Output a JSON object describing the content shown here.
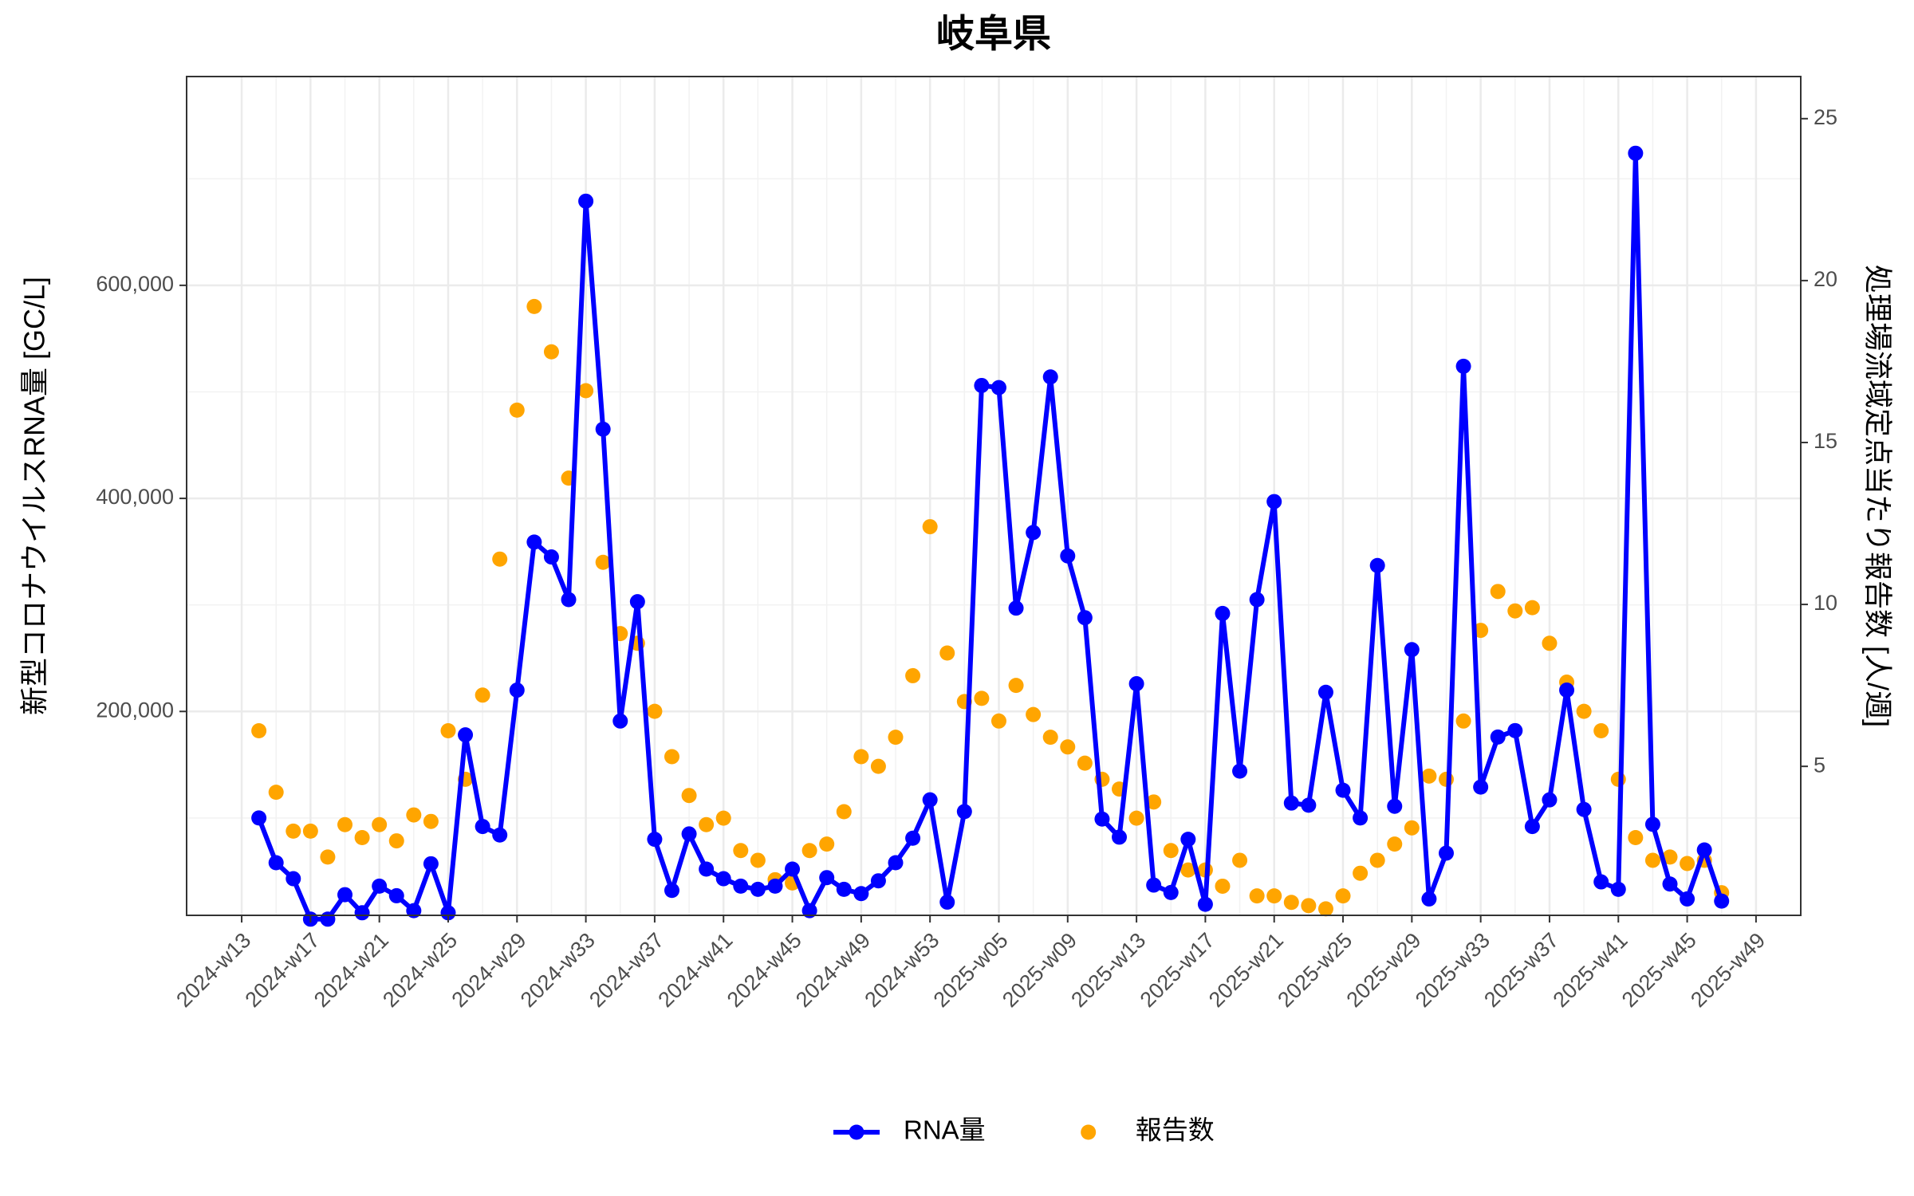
{
  "chart_data": {
    "type": "line",
    "title": "岐阜県",
    "xlabel_rotation": 45,
    "ylabel": "新型コロナウイルスRNA量 [GC/L]",
    "y2label": "処理場流域定点当たり報告数 [人/週]",
    "x": [
      1,
      2,
      3,
      4,
      5,
      6,
      7,
      8,
      9,
      10,
      11,
      12,
      13,
      14,
      15,
      16,
      17,
      18,
      19,
      20,
      21,
      22,
      23,
      24,
      25,
      26,
      27,
      28,
      29,
      30,
      31,
      32,
      33,
      34,
      35,
      36,
      37,
      38,
      39,
      40,
      41,
      42,
      43,
      44,
      45,
      46,
      47,
      48,
      49,
      50,
      51,
      52,
      53,
      54,
      55,
      56,
      57,
      58,
      59,
      60,
      61,
      62,
      63,
      64,
      65,
      66,
      67,
      68,
      69,
      70,
      71,
      72,
      73,
      74,
      75,
      76,
      77,
      78,
      79,
      80,
      81,
      82,
      83,
      84,
      85,
      86
    ],
    "xlim": [
      -3.2,
      90.6
    ],
    "xticks": [
      {
        "value": 0,
        "label": "2024-w13"
      },
      {
        "value": 4,
        "label": "2024-w17"
      },
      {
        "value": 8,
        "label": "2024-w21"
      },
      {
        "value": 12,
        "label": "2024-w25"
      },
      {
        "value": 16,
        "label": "2024-w29"
      },
      {
        "value": 20,
        "label": "2024-w33"
      },
      {
        "value": 24,
        "label": "2024-w37"
      },
      {
        "value": 28,
        "label": "2024-w41"
      },
      {
        "value": 32,
        "label": "2024-w45"
      },
      {
        "value": 36,
        "label": "2024-w49"
      },
      {
        "value": 40,
        "label": "2024-w53"
      },
      {
        "value": 44,
        "label": "2025-w05"
      },
      {
        "value": 48,
        "label": "2025-w09"
      },
      {
        "value": 52,
        "label": "2025-w13"
      },
      {
        "value": 56,
        "label": "2025-w17"
      },
      {
        "value": 60,
        "label": "2025-w21"
      },
      {
        "value": 64,
        "label": "2025-w25"
      },
      {
        "value": 68,
        "label": "2025-w29"
      },
      {
        "value": 72,
        "label": "2025-w33"
      },
      {
        "value": 76,
        "label": "2025-w37"
      },
      {
        "value": 80,
        "label": "2025-w41"
      },
      {
        "value": 84,
        "label": "2025-w45"
      },
      {
        "value": 88,
        "label": "2025-w49"
      }
    ],
    "ylim": [
      8600,
      796000
    ],
    "yticks": [
      {
        "value": 200000,
        "label": "200,000"
      },
      {
        "value": 400000,
        "label": "400,000"
      },
      {
        "value": 600000,
        "label": "600,000"
      }
    ],
    "y2lim": [
      0.4,
      26.3
    ],
    "y2ticks": [
      5,
      10,
      15,
      20,
      25
    ],
    "grid": true,
    "legend": "bottom",
    "series": [
      {
        "name": "RNA量",
        "color": "#0000ff",
        "mode": "lines+markers",
        "values": [
          100000,
          58000,
          43000,
          5000,
          5000,
          28000,
          11000,
          36000,
          27000,
          13000,
          57000,
          11000,
          178000,
          92000,
          84000,
          220000,
          359000,
          345000,
          305000,
          679000,
          465000,
          191000,
          303000,
          80000,
          32000,
          85000,
          52000,
          43000,
          36000,
          33000,
          36000,
          52000,
          13000,
          44000,
          33000,
          29000,
          41000,
          58000,
          81000,
          117000,
          21000,
          106000,
          506000,
          504000,
          297000,
          368000,
          514000,
          346000,
          288000,
          99000,
          82000,
          226000,
          37000,
          30000,
          80000,
          19000,
          292000,
          144000,
          305000,
          397000,
          114000,
          112000,
          218000,
          126000,
          100000,
          337000,
          111000,
          258000,
          24000,
          67000,
          524000,
          129000,
          176000,
          182000,
          92000,
          117000,
          220000,
          108000,
          40000,
          33000,
          724000,
          94000,
          38000,
          24000,
          70000,
          22000
        ]
      },
      {
        "name": "報告数",
        "color": "#ffa500",
        "mode": "markers",
        "axis": "y2",
        "values": [
          6.1,
          4.2,
          3.0,
          3.0,
          2.2,
          3.2,
          2.8,
          3.2,
          2.7,
          3.5,
          3.3,
          6.1,
          4.6,
          7.2,
          11.4,
          16.0,
          19.2,
          17.8,
          13.9,
          16.6,
          11.3,
          9.1,
          8.8,
          6.7,
          5.3,
          4.1,
          3.2,
          3.4,
          2.4,
          2.1,
          1.5,
          1.4,
          2.4,
          2.6,
          3.6,
          5.3,
          5.0,
          5.9,
          7.8,
          12.4,
          8.5,
          7.0,
          7.1,
          6.4,
          7.5,
          6.6,
          5.9,
          5.6,
          5.1,
          4.6,
          4.3,
          3.4,
          3.9,
          2.4,
          1.8,
          1.8,
          1.3,
          2.1,
          1.0,
          1.0,
          0.8,
          0.7,
          0.6,
          1.0,
          1.7,
          2.1,
          2.6,
          3.1,
          4.7,
          4.6,
          6.4,
          9.2,
          10.4,
          9.8,
          9.9,
          8.8,
          7.6,
          6.7,
          6.1,
          4.6,
          2.8,
          2.1,
          2.2,
          2.0,
          2.1,
          1.1
        ]
      }
    ]
  }
}
